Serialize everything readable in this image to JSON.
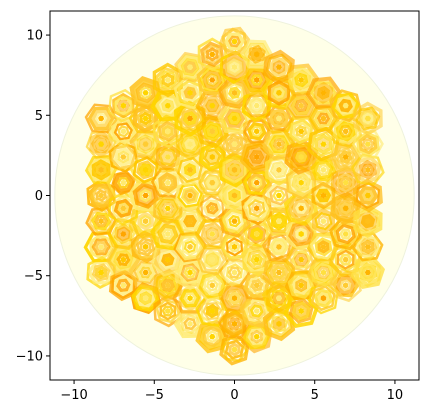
{
  "chart_data": {
    "type": "scatter",
    "title": "",
    "xlabel": "",
    "ylabel": "",
    "xlim": [
      -11.5,
      11.5
    ],
    "ylim": [
      -11.5,
      11.5
    ],
    "grid": false,
    "xticks": [
      -10,
      -5,
      0,
      5,
      10
    ],
    "yticks": [
      -10,
      -5,
      0,
      5,
      10
    ],
    "xtick_labels": [
      "−10",
      "−5",
      "0",
      "5",
      "10"
    ],
    "ytick_labels": [
      "−10",
      "−5",
      "0",
      "5",
      "10"
    ],
    "background_disk": {
      "center": [
        0,
        0
      ],
      "radius": 11.2,
      "color": "#FFFFE8"
    },
    "colors": [
      "#FFD500",
      "#FFC800",
      "#FFB400",
      "#FFA500",
      "#FFE040",
      "#FFCC33",
      "#FFBF1A",
      "#FFEA70"
    ],
    "marker": "hexagon-ring",
    "lattice_spacing": 1.6,
    "region": "hexagonal patch within radius ~10.2"
  }
}
